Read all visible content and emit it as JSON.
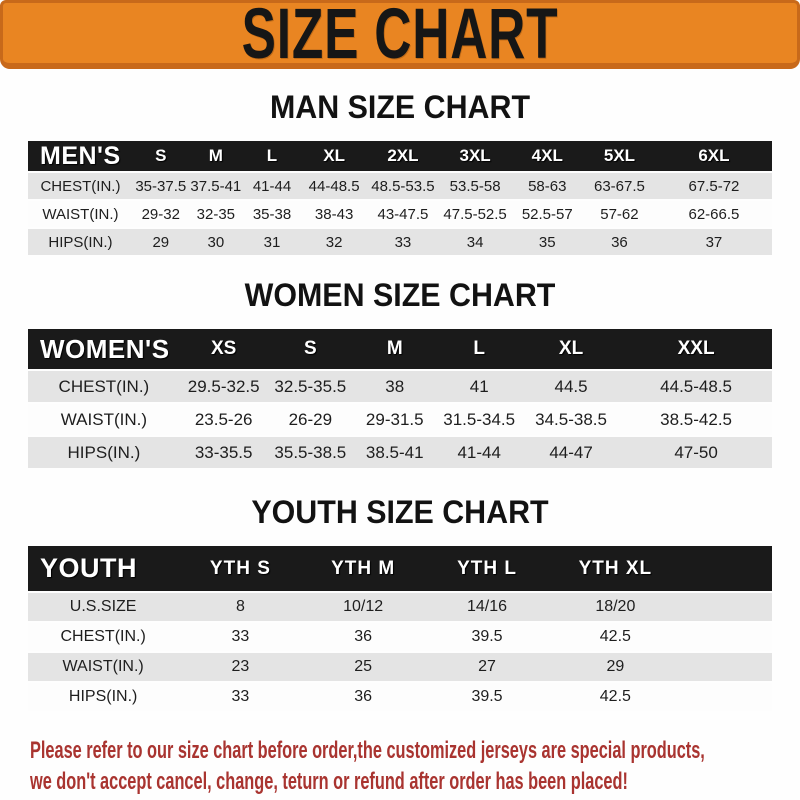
{
  "banner": {
    "title": "SIZE CHART"
  },
  "sections": [
    {
      "heading": "MAN SIZE CHART",
      "table": {
        "header_label": "MEN'S",
        "columns": [
          "S",
          "M",
          "L",
          "XL",
          "2XL",
          "3XL",
          "4XL",
          "5XL",
          "6XL"
        ],
        "rows": [
          {
            "label": "CHEST(IN.)",
            "values": [
              "35-37.5",
              "37.5-41",
              "41-44",
              "44-48.5",
              "48.5-53.5",
              "53.5-58",
              "58-63",
              "63-67.5",
              "67.5-72"
            ]
          },
          {
            "label": "WAIST(IN.)",
            "values": [
              "29-32",
              "32-35",
              "35-38",
              "38-43",
              "43-47.5",
              "47.5-52.5",
              "52.5-57",
              "57-62",
              "62-66.5"
            ]
          },
          {
            "label": "HIPS(IN.)",
            "values": [
              "29",
              "30",
              "31",
              "32",
              "33",
              "34",
              "35",
              "36",
              "37"
            ]
          }
        ]
      }
    },
    {
      "heading": "WOMEN SIZE CHART",
      "table": {
        "header_label": "WOMEN'S",
        "columns": [
          "XS",
          "S",
          "M",
          "L",
          "XL",
          "XXL"
        ],
        "rows": [
          {
            "label": "CHEST(IN.)",
            "values": [
              "29.5-32.5",
              "32.5-35.5",
              "38",
              "41",
              "44.5",
              "44.5-48.5"
            ]
          },
          {
            "label": "WAIST(IN.)",
            "values": [
              "23.5-26",
              "26-29",
              "29-31.5",
              "31.5-34.5",
              "34.5-38.5",
              "38.5-42.5"
            ]
          },
          {
            "label": "HIPS(IN.)",
            "values": [
              "33-35.5",
              "35.5-38.5",
              "38.5-41",
              "41-44",
              "44-47",
              "47-50"
            ]
          }
        ]
      }
    },
    {
      "heading": "YOUTH SIZE CHART",
      "table": {
        "header_label": "YOUTH",
        "columns": [
          "YTH S",
          "YTH M",
          "YTH L",
          "YTH XL"
        ],
        "rows": [
          {
            "label": "U.S.SIZE",
            "values": [
              "8",
              "10/12",
              "14/16",
              "18/20"
            ]
          },
          {
            "label": "CHEST(IN.)",
            "values": [
              "33",
              "36",
              "39.5",
              "42.5"
            ]
          },
          {
            "label": "WAIST(IN.)",
            "values": [
              "23",
              "25",
              "27",
              "29"
            ]
          },
          {
            "label": "HIPS(IN.)",
            "values": [
              "33",
              "36",
              "39.5",
              "42.5"
            ]
          }
        ]
      }
    }
  ],
  "footer": {
    "lines": [
      "Please refer to our size chart before order,the customized jerseys are special products,",
      "we don't accept cancel, change, teturn or refund after order has been placed!"
    ]
  },
  "colors": {
    "banner_orange": "#E98522",
    "banner_border": "#C8691A",
    "header_bar_black": "#1A1A1A",
    "row_stripe_gray": "#E4E4E4",
    "row_stripe_white": "#FDFDFD",
    "footer_red": "#A93430",
    "title_text": "#161616"
  }
}
